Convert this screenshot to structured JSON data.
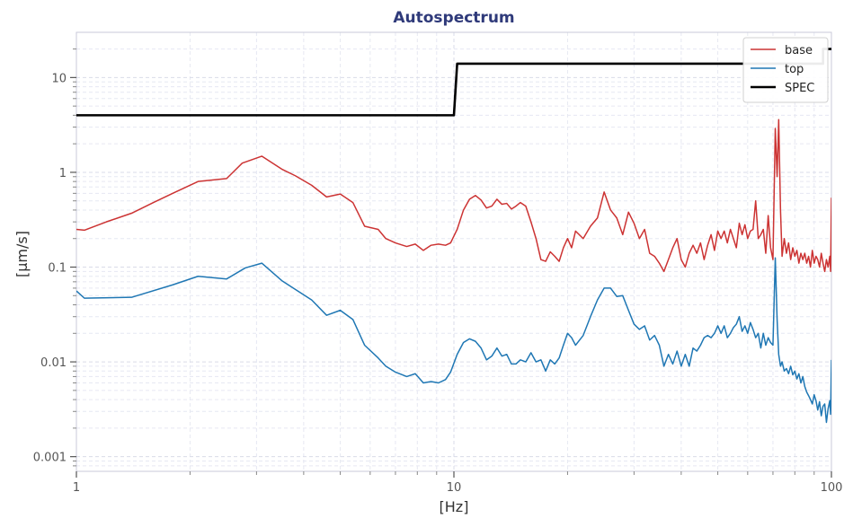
{
  "chart_data": {
    "type": "line",
    "title": "Autospectrum",
    "xlabel": "[Hz]",
    "ylabel": "[µm/s]",
    "xscale": "log",
    "yscale": "log",
    "xlim": [
      1,
      100
    ],
    "ylim": [
      0.0007,
      30
    ],
    "x_ticks": [
      {
        "value": 1,
        "label": "1"
      },
      {
        "value": 10,
        "label": "10"
      },
      {
        "value": 100,
        "label": "100"
      }
    ],
    "y_ticks": [
      {
        "value": 0.001,
        "label": "0.001"
      },
      {
        "value": 0.01,
        "label": "0.01"
      },
      {
        "value": 0.1,
        "label": "0.1"
      },
      {
        "value": 1,
        "label": "1"
      },
      {
        "value": 10,
        "label": "10"
      }
    ],
    "grid": true,
    "legend_position": "top-right",
    "series": [
      {
        "name": "base",
        "color": "#cc3333",
        "points": [
          [
            1.0,
            0.25
          ],
          [
            1.05,
            0.245
          ],
          [
            1.2,
            0.3
          ],
          [
            1.4,
            0.37
          ],
          [
            1.6,
            0.48
          ],
          [
            1.8,
            0.6
          ],
          [
            2.1,
            0.8
          ],
          [
            2.5,
            0.86
          ],
          [
            2.75,
            1.25
          ],
          [
            3.1,
            1.48
          ],
          [
            3.5,
            1.08
          ],
          [
            3.8,
            0.92
          ],
          [
            4.2,
            0.73
          ],
          [
            4.6,
            0.55
          ],
          [
            5.0,
            0.59
          ],
          [
            5.4,
            0.48
          ],
          [
            5.8,
            0.27
          ],
          [
            6.3,
            0.25
          ],
          [
            6.6,
            0.2
          ],
          [
            7.0,
            0.18
          ],
          [
            7.5,
            0.165
          ],
          [
            7.9,
            0.175
          ],
          [
            8.3,
            0.15
          ],
          [
            8.7,
            0.17
          ],
          [
            9.1,
            0.175
          ],
          [
            9.5,
            0.17
          ],
          [
            9.8,
            0.18
          ],
          [
            10.2,
            0.25
          ],
          [
            10.6,
            0.4
          ],
          [
            11.0,
            0.52
          ],
          [
            11.4,
            0.57
          ],
          [
            11.8,
            0.51
          ],
          [
            12.2,
            0.42
          ],
          [
            12.6,
            0.44
          ],
          [
            13.0,
            0.52
          ],
          [
            13.4,
            0.46
          ],
          [
            13.8,
            0.47
          ],
          [
            14.2,
            0.41
          ],
          [
            14.6,
            0.44
          ],
          [
            15.0,
            0.48
          ],
          [
            15.5,
            0.44
          ],
          [
            16.0,
            0.3
          ],
          [
            16.5,
            0.2
          ],
          [
            17.0,
            0.12
          ],
          [
            17.5,
            0.115
          ],
          [
            18.0,
            0.145
          ],
          [
            18.5,
            0.13
          ],
          [
            19.0,
            0.115
          ],
          [
            19.5,
            0.16
          ],
          [
            20.0,
            0.2
          ],
          [
            20.5,
            0.16
          ],
          [
            21.0,
            0.24
          ],
          [
            22.0,
            0.2
          ],
          [
            23.0,
            0.27
          ],
          [
            24.0,
            0.33
          ],
          [
            25.0,
            0.62
          ],
          [
            26.0,
            0.4
          ],
          [
            27.0,
            0.33
          ],
          [
            28.0,
            0.22
          ],
          [
            29.0,
            0.38
          ],
          [
            30.0,
            0.29
          ],
          [
            31.0,
            0.2
          ],
          [
            32.0,
            0.25
          ],
          [
            33.0,
            0.14
          ],
          [
            34.0,
            0.13
          ],
          [
            35.0,
            0.11
          ],
          [
            36.0,
            0.09
          ],
          [
            37.0,
            0.12
          ],
          [
            38.0,
            0.16
          ],
          [
            39.0,
            0.2
          ],
          [
            40.0,
            0.12
          ],
          [
            41.0,
            0.1
          ],
          [
            42.0,
            0.14
          ],
          [
            43.0,
            0.17
          ],
          [
            44.0,
            0.14
          ],
          [
            45.0,
            0.18
          ],
          [
            46.0,
            0.12
          ],
          [
            47.0,
            0.17
          ],
          [
            48.0,
            0.22
          ],
          [
            49.0,
            0.15
          ],
          [
            50.0,
            0.24
          ],
          [
            51.0,
            0.2
          ],
          [
            52.0,
            0.24
          ],
          [
            53.0,
            0.18
          ],
          [
            54.0,
            0.25
          ],
          [
            55.0,
            0.2
          ],
          [
            56.0,
            0.16
          ],
          [
            57.0,
            0.29
          ],
          [
            58.0,
            0.22
          ],
          [
            59.0,
            0.28
          ],
          [
            60.0,
            0.2
          ],
          [
            61.0,
            0.24
          ],
          [
            62.0,
            0.25
          ],
          [
            63.0,
            0.5
          ],
          [
            64.0,
            0.2
          ],
          [
            65.0,
            0.22
          ],
          [
            66.0,
            0.25
          ],
          [
            67.0,
            0.14
          ],
          [
            68.0,
            0.35
          ],
          [
            69.0,
            0.16
          ],
          [
            70.0,
            0.12
          ],
          [
            71.0,
            2.9
          ],
          [
            71.8,
            0.9
          ],
          [
            72.5,
            3.6
          ],
          [
            73.3,
            0.4
          ],
          [
            74.0,
            0.13
          ],
          [
            75.0,
            0.2
          ],
          [
            76.0,
            0.14
          ],
          [
            77.0,
            0.18
          ],
          [
            78.0,
            0.12
          ],
          [
            79.0,
            0.16
          ],
          [
            80.0,
            0.13
          ],
          [
            81.0,
            0.15
          ],
          [
            82.0,
            0.11
          ],
          [
            83.0,
            0.14
          ],
          [
            84.0,
            0.12
          ],
          [
            85.0,
            0.14
          ],
          [
            86.0,
            0.11
          ],
          [
            87.0,
            0.13
          ],
          [
            88.0,
            0.1
          ],
          [
            89.0,
            0.15
          ],
          [
            90.0,
            0.11
          ],
          [
            91.0,
            0.13
          ],
          [
            92.0,
            0.12
          ],
          [
            93.0,
            0.1
          ],
          [
            94.0,
            0.14
          ],
          [
            95.0,
            0.11
          ],
          [
            96.0,
            0.09
          ],
          [
            97.0,
            0.12
          ],
          [
            98.0,
            0.1
          ],
          [
            99.0,
            0.13
          ],
          [
            99.5,
            0.09
          ],
          [
            100.0,
            0.54
          ]
        ]
      },
      {
        "name": "top",
        "color": "#1f77b4",
        "points": [
          [
            1.0,
            0.056
          ],
          [
            1.05,
            0.047
          ],
          [
            1.4,
            0.048
          ],
          [
            1.8,
            0.065
          ],
          [
            2.1,
            0.08
          ],
          [
            2.5,
            0.075
          ],
          [
            2.8,
            0.098
          ],
          [
            3.1,
            0.11
          ],
          [
            3.5,
            0.072
          ],
          [
            4.2,
            0.045
          ],
          [
            4.6,
            0.031
          ],
          [
            5.0,
            0.035
          ],
          [
            5.4,
            0.028
          ],
          [
            5.8,
            0.015
          ],
          [
            6.3,
            0.011
          ],
          [
            6.6,
            0.009
          ],
          [
            7.0,
            0.0078
          ],
          [
            7.5,
            0.007
          ],
          [
            7.9,
            0.0075
          ],
          [
            8.3,
            0.006
          ],
          [
            8.7,
            0.0062
          ],
          [
            9.1,
            0.006
          ],
          [
            9.5,
            0.0065
          ],
          [
            9.8,
            0.0078
          ],
          [
            10.2,
            0.012
          ],
          [
            10.6,
            0.016
          ],
          [
            11.0,
            0.0175
          ],
          [
            11.4,
            0.0165
          ],
          [
            11.8,
            0.014
          ],
          [
            12.2,
            0.0105
          ],
          [
            12.6,
            0.0115
          ],
          [
            13.0,
            0.014
          ],
          [
            13.4,
            0.0115
          ],
          [
            13.8,
            0.012
          ],
          [
            14.2,
            0.0095
          ],
          [
            14.6,
            0.0095
          ],
          [
            15.0,
            0.0105
          ],
          [
            15.5,
            0.01
          ],
          [
            16.0,
            0.0125
          ],
          [
            16.5,
            0.01
          ],
          [
            17.0,
            0.0105
          ],
          [
            17.5,
            0.008
          ],
          [
            18.0,
            0.0105
          ],
          [
            18.5,
            0.0095
          ],
          [
            19.0,
            0.011
          ],
          [
            19.5,
            0.015
          ],
          [
            20.0,
            0.02
          ],
          [
            20.5,
            0.018
          ],
          [
            21.0,
            0.015
          ],
          [
            22.0,
            0.019
          ],
          [
            23.0,
            0.03
          ],
          [
            24.0,
            0.045
          ],
          [
            25.0,
            0.06
          ],
          [
            26.0,
            0.06
          ],
          [
            27.0,
            0.049
          ],
          [
            28.0,
            0.05
          ],
          [
            29.0,
            0.035
          ],
          [
            30.0,
            0.025
          ],
          [
            31.0,
            0.022
          ],
          [
            32.0,
            0.024
          ],
          [
            33.0,
            0.017
          ],
          [
            34.0,
            0.019
          ],
          [
            35.0,
            0.015
          ],
          [
            36.0,
            0.009
          ],
          [
            37.0,
            0.012
          ],
          [
            38.0,
            0.0095
          ],
          [
            39.0,
            0.013
          ],
          [
            40.0,
            0.009
          ],
          [
            41.0,
            0.012
          ],
          [
            42.0,
            0.009
          ],
          [
            43.0,
            0.014
          ],
          [
            44.0,
            0.013
          ],
          [
            45.0,
            0.015
          ],
          [
            46.0,
            0.018
          ],
          [
            47.0,
            0.019
          ],
          [
            48.0,
            0.018
          ],
          [
            49.0,
            0.02
          ],
          [
            50.0,
            0.024
          ],
          [
            51.0,
            0.02
          ],
          [
            52.0,
            0.024
          ],
          [
            53.0,
            0.018
          ],
          [
            54.0,
            0.02
          ],
          [
            55.0,
            0.023
          ],
          [
            56.0,
            0.025
          ],
          [
            57.0,
            0.03
          ],
          [
            58.0,
            0.021
          ],
          [
            59.0,
            0.024
          ],
          [
            60.0,
            0.02
          ],
          [
            61.0,
            0.026
          ],
          [
            62.0,
            0.022
          ],
          [
            63.0,
            0.018
          ],
          [
            64.0,
            0.02
          ],
          [
            65.0,
            0.014
          ],
          [
            66.0,
            0.02
          ],
          [
            67.0,
            0.015
          ],
          [
            68.0,
            0.018
          ],
          [
            69.0,
            0.016
          ],
          [
            70.0,
            0.015
          ],
          [
            71.0,
            0.125
          ],
          [
            71.8,
            0.028
          ],
          [
            72.5,
            0.012
          ],
          [
            73.3,
            0.009
          ],
          [
            74.0,
            0.01
          ],
          [
            75.0,
            0.008
          ],
          [
            76.0,
            0.0085
          ],
          [
            77.0,
            0.0075
          ],
          [
            78.0,
            0.009
          ],
          [
            79.0,
            0.0073
          ],
          [
            80.0,
            0.008
          ],
          [
            81.0,
            0.0066
          ],
          [
            82.0,
            0.0075
          ],
          [
            83.0,
            0.006
          ],
          [
            84.0,
            0.007
          ],
          [
            85.0,
            0.0055
          ],
          [
            86.0,
            0.0048
          ],
          [
            87.0,
            0.0044
          ],
          [
            88.0,
            0.004
          ],
          [
            89.0,
            0.0036
          ],
          [
            90.0,
            0.0045
          ],
          [
            91.0,
            0.0039
          ],
          [
            92.0,
            0.0031
          ],
          [
            93.0,
            0.0038
          ],
          [
            94.0,
            0.0027
          ],
          [
            95.0,
            0.0034
          ],
          [
            96.0,
            0.0036
          ],
          [
            97.0,
            0.0023
          ],
          [
            98.0,
            0.0032
          ],
          [
            99.0,
            0.0039
          ],
          [
            99.5,
            0.0028
          ],
          [
            100.0,
            0.0105
          ]
        ]
      },
      {
        "name": "SPEC",
        "color": "#000000",
        "points": [
          [
            1.0,
            4.0
          ],
          [
            10.0,
            4.0
          ],
          [
            10.2,
            14.0
          ],
          [
            95.0,
            14.0
          ],
          [
            95.0,
            20.0
          ],
          [
            100.0,
            20.0
          ]
        ]
      }
    ]
  }
}
